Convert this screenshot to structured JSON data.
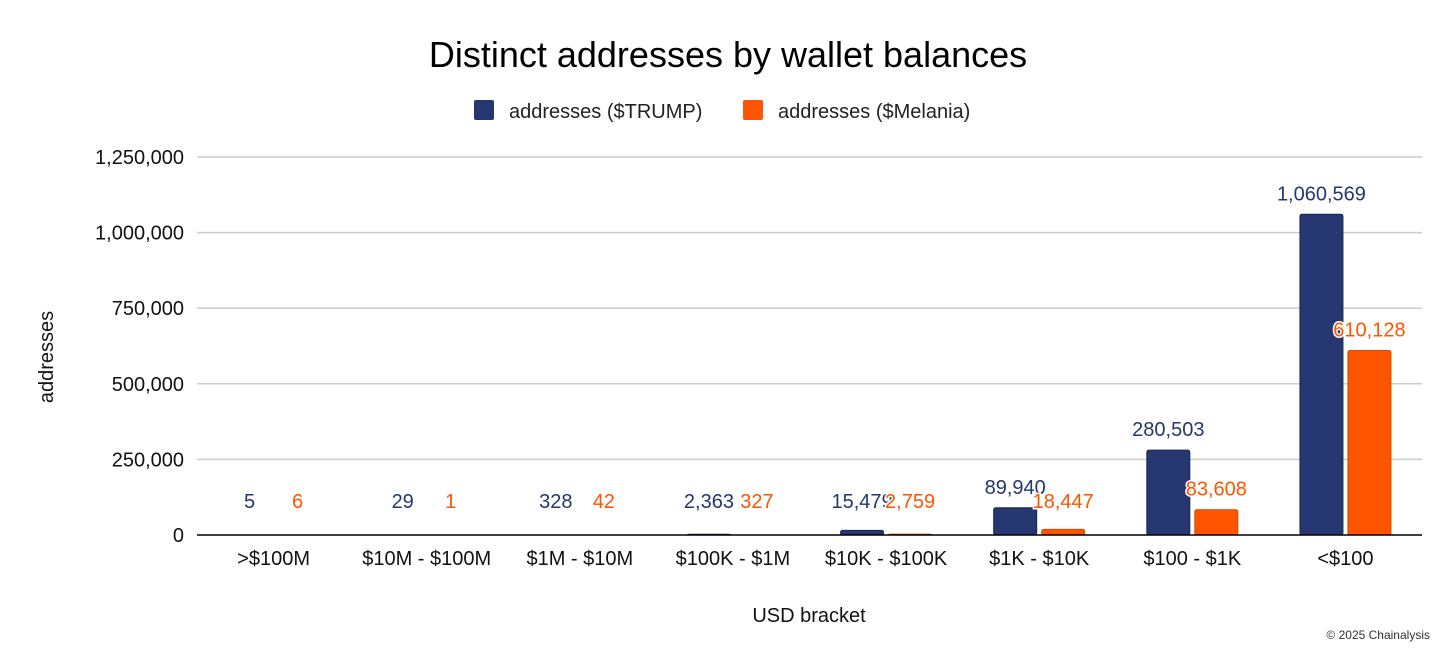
{
  "colors": {
    "trump": "#253670",
    "melania": "#FF5500",
    "grid": "#CCCCCC",
    "axis": "#000000"
  },
  "credit": "© 2025 Chainalysis",
  "chart_data": {
    "type": "bar",
    "title": "Distinct addresses by wallet balances",
    "xlabel": "USD bracket",
    "ylabel": "addresses",
    "ylim": [
      0,
      1250000
    ],
    "yticks": [
      0,
      250000,
      500000,
      750000,
      1000000,
      1250000
    ],
    "ytick_labels": [
      "0",
      "250,000",
      "500,000",
      "750,000",
      "1,000,000",
      "1,250,000"
    ],
    "grid": true,
    "legend_position": "top",
    "categories": [
      ">$100M",
      "$10M - $100M",
      "$1M - $10M",
      "$100K - $1M",
      "$10K - $100K",
      "$1K - $10K",
      "$100 - $1K",
      "<$100"
    ],
    "series": [
      {
        "name": "addresses ($TRUMP)",
        "values": [
          5,
          29,
          328,
          2363,
          15479,
          89940,
          280503,
          1060569
        ],
        "labels": [
          "5",
          "29",
          "328",
          "2,363",
          "15,479",
          "89,940",
          "280,503",
          "1,060,569"
        ]
      },
      {
        "name": "addresses ($Melania)",
        "values": [
          6,
          1,
          42,
          327,
          2759,
          18447,
          83608,
          610128
        ],
        "labels": [
          "6",
          "1",
          "42",
          "327",
          "2,759",
          "18,447",
          "83,608",
          "610,128"
        ]
      }
    ]
  }
}
